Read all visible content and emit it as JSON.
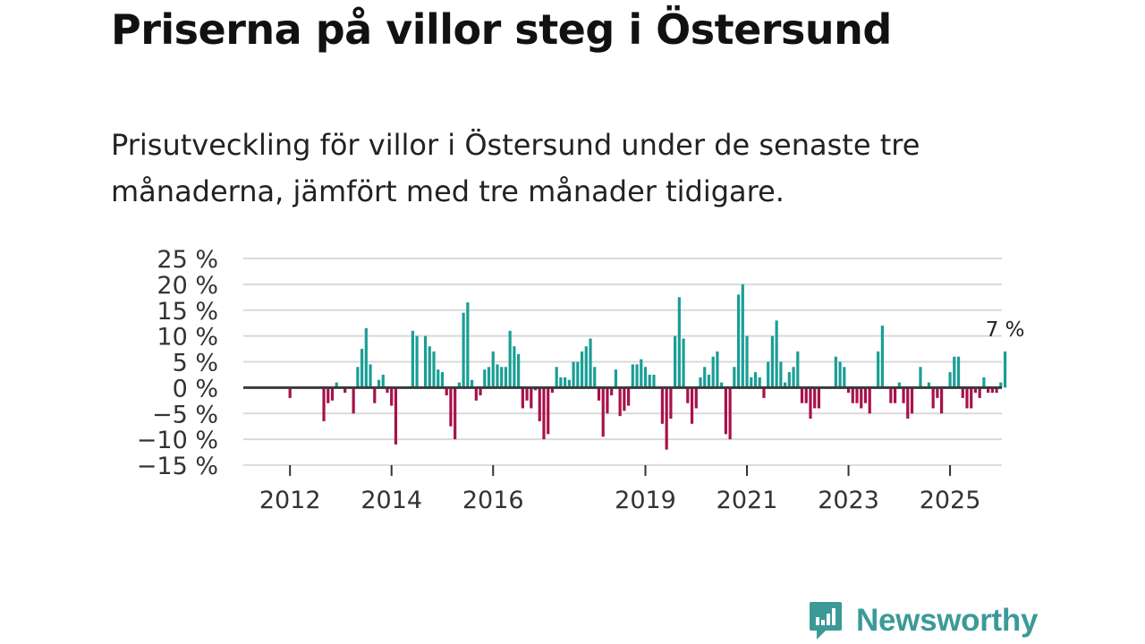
{
  "title": "Priserna på villor steg i Östersund",
  "subtitle": "Prisutveckling för villor i Östersund under de senaste tre månaderna, jämfört med tre månader tidigare.",
  "brand": {
    "name": "Newsworthy",
    "color": "#3b9a98",
    "icon": "newsworthy-logo-icon"
  },
  "chart_data": {
    "type": "bar",
    "title": "Priserna på villor steg i Östersund",
    "xlabel": "",
    "ylabel": "",
    "ylim": [
      -15,
      25
    ],
    "yticks": [
      25,
      20,
      15,
      10,
      5,
      0,
      -5,
      -10,
      -15
    ],
    "ytick_labels": [
      "25 %",
      "20 %",
      "15 %",
      "10 %",
      "5 %",
      "0 %",
      "−5 %",
      "−10 %",
      "−15 %"
    ],
    "xticks": [
      "2012",
      "2014",
      "2016",
      "2019",
      "2021",
      "2023",
      "2025"
    ],
    "x_start": "2011-10",
    "positive_color": "#1a9e96",
    "negative_color": "#a8114a",
    "annotation": "7 %",
    "values": [
      0,
      0,
      0,
      -2,
      0,
      0,
      0,
      0,
      0,
      0,
      0,
      -6.5,
      -3,
      -2.5,
      1,
      0,
      -1,
      0,
      -5,
      4,
      7.5,
      11.5,
      4.5,
      -3,
      1.5,
      2.5,
      -1,
      -3.5,
      -11,
      0,
      0,
      0,
      11,
      10,
      0,
      10,
      8,
      7,
      3.5,
      3,
      -1.5,
      -7.5,
      -10,
      1,
      14.5,
      16.5,
      1.5,
      -2.5,
      -1.5,
      3.5,
      4,
      7,
      4.5,
      4,
      4,
      11,
      8,
      6.5,
      -4,
      -2.5,
      -4,
      -0.5,
      -6.5,
      -10,
      -9,
      -1,
      4,
      2,
      2,
      1.5,
      5,
      5,
      7,
      8,
      9.5,
      4,
      -2.5,
      -9.5,
      -5,
      -1.5,
      3.5,
      -5.5,
      -4.5,
      -3.5,
      4.5,
      4.5,
      5.5,
      4,
      2.5,
      2.5,
      0,
      -7,
      -12,
      -6,
      10,
      17.5,
      9.5,
      -3,
      -7,
      -4,
      2,
      4,
      2.5,
      6,
      7,
      1,
      -9,
      -10,
      4,
      18,
      20,
      10,
      2,
      3,
      2,
      -2,
      5,
      10,
      13,
      5,
      1,
      3,
      4,
      7,
      -3,
      -3,
      -6,
      -4,
      -4,
      0,
      0,
      0,
      6,
      5,
      4,
      -1,
      -3,
      -3,
      -4,
      -3,
      -5,
      0,
      7,
      12,
      0,
      -3,
      -3,
      1,
      -3,
      -6,
      -5,
      0,
      4,
      0,
      1,
      -4,
      -2,
      -5,
      0,
      3,
      6,
      6,
      -2,
      -4,
      -4,
      -1,
      -2,
      2,
      -1,
      -1,
      -1,
      1,
      7
    ]
  }
}
